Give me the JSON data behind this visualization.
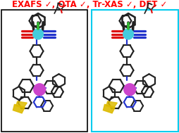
{
  "title_text": "EXAFS ✓, OTA ✓, Tr-XAS ✓, DFT ✓",
  "title_color": "#ff0000",
  "title_fontsize": 8.5,
  "title_fontweight": "bold",
  "bg_color": "#ffffff",
  "panel1_border_color": "#000000",
  "panel2_border_color": "#00ccee",
  "iridium_color": "#44ccdd",
  "cobalt_color": "#cc44cc",
  "dark_color": "#222222",
  "blue_color": "#2233cc",
  "red_color": "#dd1111",
  "green_color": "#33bb33",
  "yellow_color": "#ddbb00"
}
